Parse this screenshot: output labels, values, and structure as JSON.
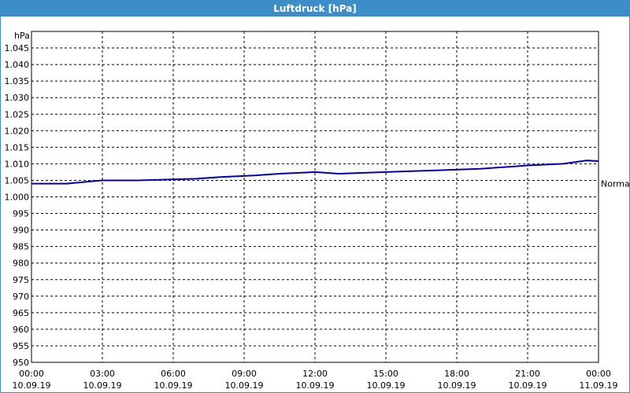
{
  "chart_data": {
    "type": "line",
    "title": "Luftdruck [hPa]",
    "y_label": "hPa",
    "x": [
      0,
      1.5,
      3,
      4.5,
      7,
      8,
      9.5,
      10.5,
      12,
      13,
      15,
      17,
      19,
      21,
      22.5,
      23.5,
      24
    ],
    "series": [
      {
        "name": "Luftdruck",
        "color": "#0000b4",
        "values": [
          1004,
          1004,
          1005,
          1005,
          1005.5,
          1006,
          1006.5,
          1007,
          1007.5,
          1007,
          1007.5,
          1008,
          1008.5,
          1009.5,
          1010,
          1011,
          1010.8
        ]
      }
    ],
    "xlim": [
      0,
      24
    ],
    "xticks": [
      {
        "value": 0,
        "label": "00:00"
      },
      {
        "value": 3,
        "label": "03:00"
      },
      {
        "value": 6,
        "label": "06:00"
      },
      {
        "value": 9,
        "label": "09:00"
      },
      {
        "value": 12,
        "label": "12:00"
      },
      {
        "value": 15,
        "label": "15:00"
      },
      {
        "value": 18,
        "label": "18:00"
      },
      {
        "value": 21,
        "label": "21:00"
      },
      {
        "value": 24,
        "label": "00:00"
      }
    ],
    "xtick_dates": [
      "10.09.19",
      "10.09.19",
      "10.09.19",
      "10.09.19",
      "10.09.19",
      "10.09.19",
      "10.09.19",
      "10.09.19",
      "11.09.19"
    ],
    "ylim": [
      950,
      1050
    ],
    "yticks": [
      950,
      955,
      960,
      965,
      970,
      975,
      980,
      985,
      990,
      995,
      {
        "value": 1000,
        "label": "1.000"
      },
      {
        "value": 1005,
        "label": "1.005"
      },
      {
        "value": 1010,
        "label": "1.010"
      },
      {
        "value": 1015,
        "label": "1.015"
      },
      {
        "value": 1020,
        "label": "1.020"
      },
      {
        "value": 1025,
        "label": "1.025"
      },
      {
        "value": 1030,
        "label": "1.030"
      },
      {
        "value": 1035,
        "label": "1.035"
      },
      {
        "value": 1040,
        "label": "1.040"
      },
      {
        "value": 1045,
        "label": "1.045"
      }
    ],
    "grid": true,
    "annotation": {
      "text": "Normal",
      "value": 1004
    }
  }
}
